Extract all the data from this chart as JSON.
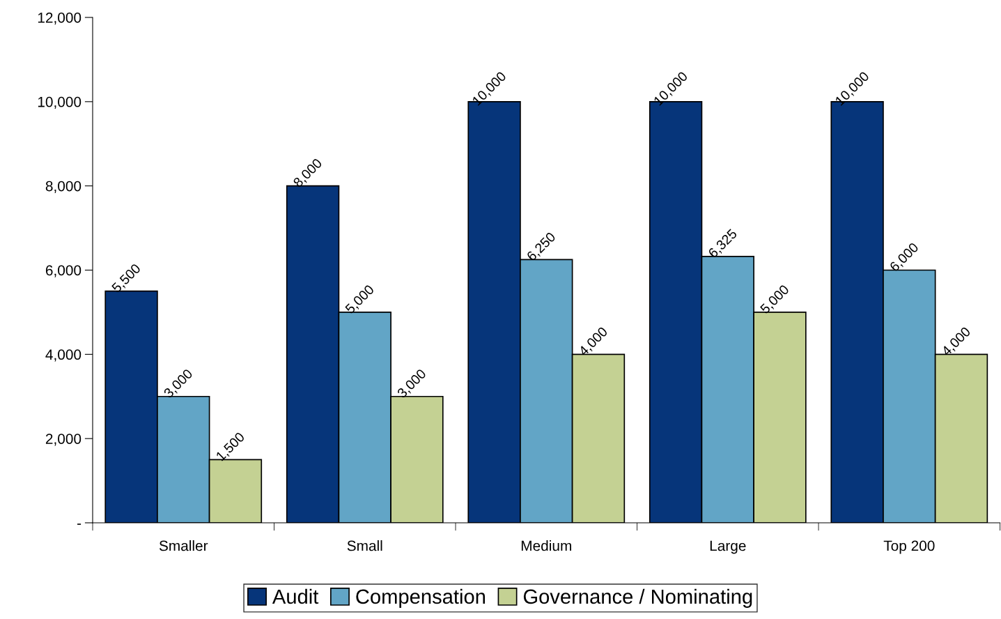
{
  "chart_data": {
    "type": "bar",
    "categories": [
      "Smaller",
      "Small",
      "Medium",
      "Large",
      "Top 200"
    ],
    "series": [
      {
        "name": "Audit",
        "color": "#06357a",
        "values": [
          5500,
          8000,
          10000,
          10000,
          10000
        ],
        "value_labels": [
          "5,500",
          "8,000",
          "10,000",
          "10,000",
          "10,000"
        ]
      },
      {
        "name": "Compensation",
        "color": "#62a5c6",
        "values": [
          3000,
          5000,
          6250,
          6325,
          6000
        ],
        "value_labels": [
          "3,000",
          "5,000",
          "6,250",
          "6,325",
          "6,000"
        ]
      },
      {
        "name": "Governance / Nominating",
        "color": "#c4d193",
        "values": [
          1500,
          3000,
          4000,
          5000,
          4000
        ],
        "value_labels": [
          "1,500",
          "3,000",
          "4,000",
          "5,000",
          "4,000"
        ]
      }
    ],
    "ylim": [
      0,
      12000
    ],
    "yticks": [
      {
        "value": 0,
        "label": "-"
      },
      {
        "value": 2000,
        "label": "2,000"
      },
      {
        "value": 4000,
        "label": "4,000"
      },
      {
        "value": 6000,
        "label": "6,000"
      },
      {
        "value": 8000,
        "label": "8,000"
      },
      {
        "value": 10000,
        "label": "10,000"
      },
      {
        "value": 12000,
        "label": "12,000"
      }
    ],
    "grid": false,
    "legend": "bottom"
  }
}
